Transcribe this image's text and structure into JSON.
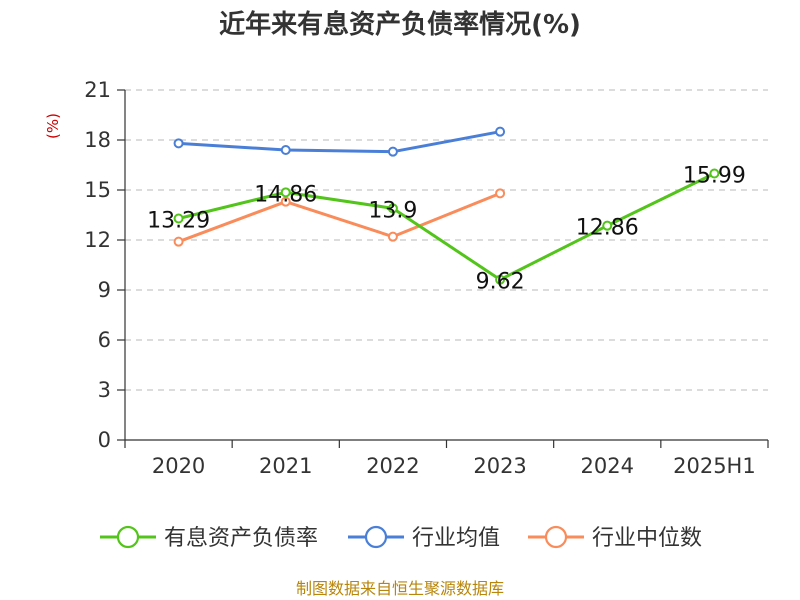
{
  "chart_data": {
    "type": "line",
    "title": "近年来有息资产负债率情况(%)",
    "ylabel": "(%)",
    "xlabel": "",
    "categories": [
      "2020",
      "2021",
      "2022",
      "2023",
      "2024",
      "2025H1"
    ],
    "ylim": [
      0,
      21
    ],
    "yticks": [
      0,
      3,
      6,
      9,
      12,
      15,
      18,
      21
    ],
    "grid": "horizontal-dashed",
    "legend_position": "bottom",
    "series": [
      {
        "name": "有息资产负债率",
        "color": "#52c41a",
        "values": [
          13.29,
          14.86,
          13.9,
          9.62,
          12.86,
          15.99
        ],
        "labels": [
          "13.29",
          "14.86",
          "13.9",
          "9.62",
          "12.86",
          "15.99"
        ]
      },
      {
        "name": "行业均值",
        "color": "#4a7fd8",
        "values": [
          17.8,
          17.4,
          17.3,
          18.5,
          null,
          null
        ]
      },
      {
        "name": "行业中位数",
        "color": "#f98c5a",
        "values": [
          11.9,
          14.3,
          12.2,
          14.8,
          null,
          null
        ]
      }
    ]
  },
  "source": "制图数据来自恒生聚源数据库"
}
